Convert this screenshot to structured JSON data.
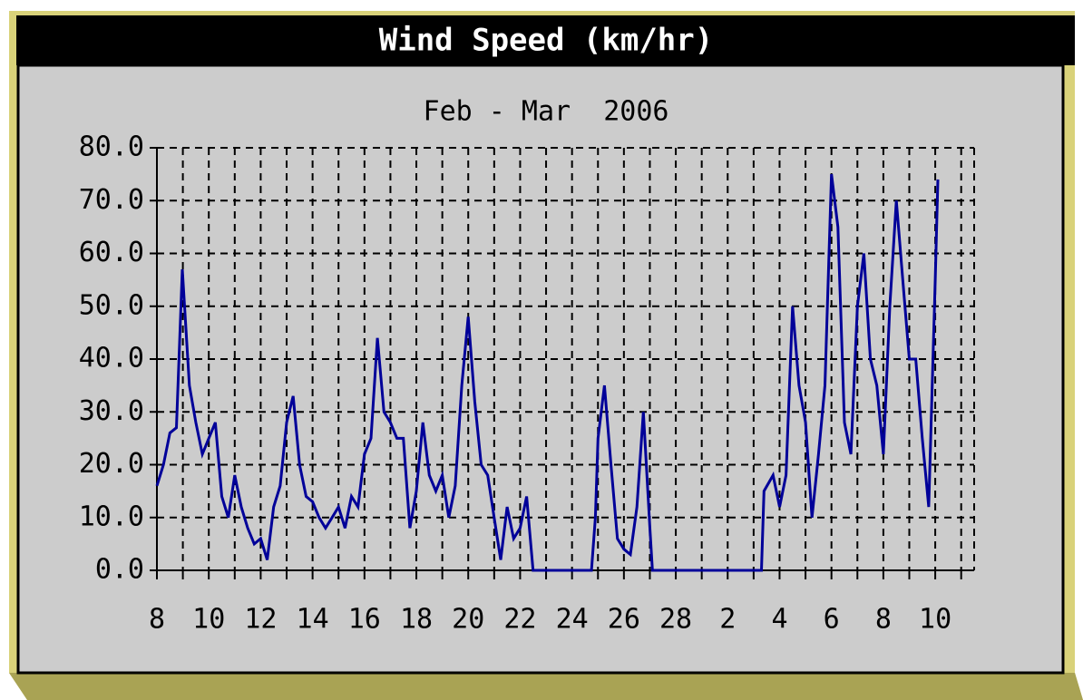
{
  "chart_data": {
    "type": "line",
    "title": "Wind Speed (km/hr)",
    "subtitle": "Feb - Mar  2006",
    "color": "#000099",
    "grid": true,
    "x": [
      0,
      0.25,
      0.5,
      0.75,
      0.98,
      1.25,
      1.5,
      1.75,
      2.0,
      2.25,
      2.5,
      2.75,
      3.0,
      3.25,
      3.5,
      3.75,
      4.0,
      4.25,
      4.5,
      4.75,
      5.0,
      5.25,
      5.5,
      5.75,
      6.0,
      6.25,
      6.5,
      6.75,
      7.0,
      7.25,
      7.5,
      7.75,
      8.0,
      8.25,
      8.5,
      8.75,
      9.0,
      9.25,
      9.5,
      9.75,
      10.0,
      10.25,
      10.5,
      10.75,
      11.0,
      11.25,
      11.5,
      11.75,
      12.0,
      12.25,
      12.5,
      12.75,
      13.0,
      13.25,
      13.5,
      13.75,
      14.0,
      14.25,
      14.5,
      16.75,
      16.9,
      17.0,
      17.25,
      17.5,
      17.75,
      18.0,
      18.25,
      18.5,
      18.75,
      19.0,
      19.1,
      23.3,
      23.4,
      23.75,
      24.0,
      24.25,
      24.5,
      24.75,
      25.0,
      25.25,
      25.5,
      25.75,
      26.0,
      26.25,
      26.5,
      26.75,
      27.0,
      27.25,
      27.5,
      27.75,
      28.0,
      28.25,
      28.5,
      28.75,
      29.0,
      29.25,
      29.5,
      29.75,
      30.0,
      30.1
    ],
    "values": [
      16,
      20,
      26,
      27,
      57,
      35,
      28,
      22,
      25,
      28,
      14,
      10,
      18,
      12,
      8,
      5,
      6,
      2,
      12,
      16,
      28,
      33,
      20,
      14,
      13,
      10,
      8,
      10,
      12,
      8,
      14,
      12,
      22,
      25,
      44,
      30,
      28,
      25,
      25,
      8,
      15,
      28,
      18,
      15,
      18,
      10,
      16,
      35,
      48,
      32,
      20,
      18,
      10,
      2,
      12,
      6,
      8,
      14,
      0,
      0,
      10,
      25,
      35,
      20,
      6,
      4,
      3,
      12,
      30,
      8,
      0,
      0,
      15,
      18,
      12,
      18,
      50,
      35,
      28,
      10,
      22,
      35,
      75,
      65,
      28,
      22,
      50,
      60,
      40,
      35,
      22,
      50,
      70,
      55,
      40,
      40,
      25,
      12,
      55,
      74
    ],
    "xlim": [
      0,
      31.5
    ],
    "xticks": [
      {
        "value": 0,
        "label": "8"
      },
      {
        "value": 1
      },
      {
        "value": 2,
        "label": "10"
      },
      {
        "value": 3
      },
      {
        "value": 4,
        "label": "12"
      },
      {
        "value": 5
      },
      {
        "value": 6,
        "label": "14"
      },
      {
        "value": 7
      },
      {
        "value": 8,
        "label": "16"
      },
      {
        "value": 9
      },
      {
        "value": 10,
        "label": "18"
      },
      {
        "value": 11
      },
      {
        "value": 12,
        "label": "20"
      },
      {
        "value": 13
      },
      {
        "value": 14,
        "label": "22"
      },
      {
        "value": 15
      },
      {
        "value": 16,
        "label": "24"
      },
      {
        "value": 17
      },
      {
        "value": 18,
        "label": "26"
      },
      {
        "value": 19
      },
      {
        "value": 20,
        "label": "28"
      },
      {
        "value": 21
      },
      {
        "value": 22,
        "label": "2"
      },
      {
        "value": 23
      },
      {
        "value": 24,
        "label": "4"
      },
      {
        "value": 25
      },
      {
        "value": 26,
        "label": "6"
      },
      {
        "value": 27
      },
      {
        "value": 28,
        "label": "8"
      },
      {
        "value": 29
      },
      {
        "value": 30,
        "label": "10"
      },
      {
        "value": 31
      }
    ],
    "ylim": [
      0,
      80
    ],
    "yticks": [
      {
        "value": 0,
        "label": "0.0"
      },
      {
        "value": 10,
        "label": "10.0"
      },
      {
        "value": 20,
        "label": "20.0"
      },
      {
        "value": 30,
        "label": "30.0"
      },
      {
        "value": 40,
        "label": "40.0"
      },
      {
        "value": 50,
        "label": "50.0"
      },
      {
        "value": 60,
        "label": "60.0"
      },
      {
        "value": 70,
        "label": "70.0"
      },
      {
        "value": 80,
        "label": "80.0"
      }
    ]
  }
}
